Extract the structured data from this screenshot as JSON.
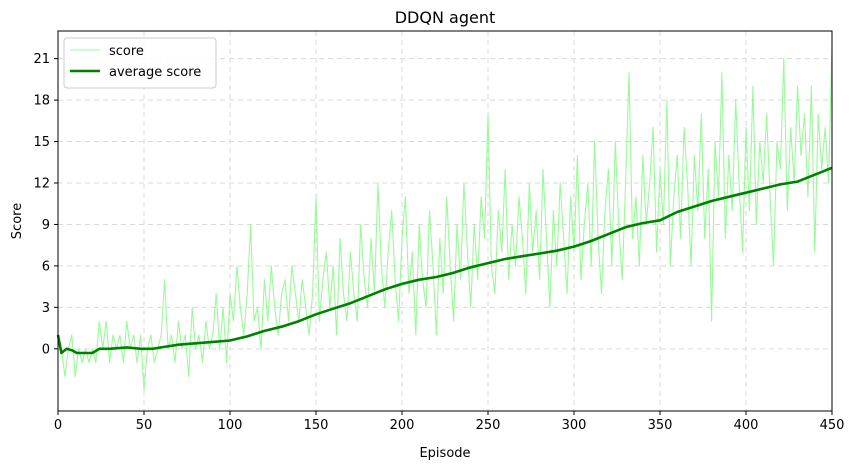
{
  "chart_data": {
    "type": "line",
    "title": "DDQN agent",
    "xlabel": "Episode",
    "ylabel": "Score",
    "xlim": [
      0,
      450
    ],
    "ylim": [
      -4.5,
      23
    ],
    "xticks": [
      0,
      50,
      100,
      150,
      200,
      250,
      300,
      350,
      400,
      450
    ],
    "yticks": [
      0,
      3,
      6,
      9,
      12,
      15,
      18,
      21
    ],
    "grid": true,
    "legend": "top-left",
    "colors": {
      "score": "#98fb98",
      "average": "#008000"
    },
    "series": [
      {
        "name": "score",
        "style": "thin",
        "points": [
          [
            0,
            1
          ],
          [
            2,
            0
          ],
          [
            4,
            -2
          ],
          [
            6,
            0
          ],
          [
            8,
            1
          ],
          [
            10,
            -2
          ],
          [
            12,
            0
          ],
          [
            14,
            -1
          ],
          [
            16,
            0
          ],
          [
            18,
            -1
          ],
          [
            20,
            0
          ],
          [
            22,
            -1
          ],
          [
            24,
            2
          ],
          [
            26,
            0
          ],
          [
            28,
            2
          ],
          [
            30,
            -1
          ],
          [
            32,
            1
          ],
          [
            34,
            0
          ],
          [
            36,
            1
          ],
          [
            38,
            -1
          ],
          [
            40,
            2
          ],
          [
            42,
            0
          ],
          [
            44,
            1
          ],
          [
            46,
            -1
          ],
          [
            48,
            1
          ],
          [
            50,
            -3
          ],
          [
            52,
            0
          ],
          [
            54,
            1
          ],
          [
            56,
            -1
          ],
          [
            58,
            0
          ],
          [
            60,
            1
          ],
          [
            62,
            5
          ],
          [
            64,
            0
          ],
          [
            66,
            1
          ],
          [
            68,
            -1
          ],
          [
            70,
            2
          ],
          [
            72,
            0
          ],
          [
            74,
            1
          ],
          [
            76,
            -2
          ],
          [
            78,
            3
          ],
          [
            80,
            0
          ],
          [
            82,
            1
          ],
          [
            84,
            -1
          ],
          [
            86,
            2
          ],
          [
            88,
            0
          ],
          [
            90,
            1
          ],
          [
            92,
            4
          ],
          [
            94,
            0
          ],
          [
            96,
            3
          ],
          [
            98,
            -1
          ],
          [
            100,
            4
          ],
          [
            102,
            2
          ],
          [
            104,
            6
          ],
          [
            106,
            3
          ],
          [
            108,
            1
          ],
          [
            110,
            4
          ],
          [
            112,
            9
          ],
          [
            114,
            2
          ],
          [
            116,
            3
          ],
          [
            118,
            0
          ],
          [
            120,
            5
          ],
          [
            122,
            2
          ],
          [
            124,
            6
          ],
          [
            126,
            3
          ],
          [
            128,
            1
          ],
          [
            130,
            4
          ],
          [
            132,
            5
          ],
          [
            134,
            2
          ],
          [
            136,
            6
          ],
          [
            138,
            4
          ],
          [
            140,
            2
          ],
          [
            142,
            5
          ],
          [
            144,
            3
          ],
          [
            146,
            1
          ],
          [
            148,
            4
          ],
          [
            150,
            11
          ],
          [
            152,
            2
          ],
          [
            154,
            5
          ],
          [
            156,
            7
          ],
          [
            158,
            3
          ],
          [
            160,
            6
          ],
          [
            162,
            1
          ],
          [
            164,
            8
          ],
          [
            166,
            4
          ],
          [
            168,
            2
          ],
          [
            170,
            7
          ],
          [
            172,
            4
          ],
          [
            174,
            2
          ],
          [
            176,
            9
          ],
          [
            178,
            5
          ],
          [
            180,
            3
          ],
          [
            182,
            8
          ],
          [
            184,
            4
          ],
          [
            186,
            12
          ],
          [
            188,
            6
          ],
          [
            190,
            3
          ],
          [
            192,
            7
          ],
          [
            194,
            10
          ],
          [
            196,
            5
          ],
          [
            198,
            2
          ],
          [
            200,
            8
          ],
          [
            202,
            11
          ],
          [
            204,
            4
          ],
          [
            206,
            7
          ],
          [
            208,
            1
          ],
          [
            210,
            9
          ],
          [
            212,
            5
          ],
          [
            214,
            3
          ],
          [
            216,
            10
          ],
          [
            218,
            6
          ],
          [
            220,
            1
          ],
          [
            222,
            8
          ],
          [
            224,
            4
          ],
          [
            226,
            11
          ],
          [
            228,
            6
          ],
          [
            230,
            2
          ],
          [
            232,
            9
          ],
          [
            234,
            5
          ],
          [
            236,
            12
          ],
          [
            238,
            7
          ],
          [
            240,
            3
          ],
          [
            242,
            9
          ],
          [
            244,
            5
          ],
          [
            246,
            11
          ],
          [
            248,
            8
          ],
          [
            250,
            17
          ],
          [
            252,
            6
          ],
          [
            254,
            4
          ],
          [
            256,
            10
          ],
          [
            258,
            7
          ],
          [
            260,
            13
          ],
          [
            262,
            5
          ],
          [
            264,
            9
          ],
          [
            266,
            6
          ],
          [
            268,
            11
          ],
          [
            270,
            8
          ],
          [
            272,
            4
          ],
          [
            274,
            12
          ],
          [
            276,
            7
          ],
          [
            278,
            10
          ],
          [
            280,
            5
          ],
          [
            282,
            13
          ],
          [
            284,
            8
          ],
          [
            286,
            3
          ],
          [
            288,
            10
          ],
          [
            290,
            6
          ],
          [
            292,
            12
          ],
          [
            294,
            8
          ],
          [
            296,
            4
          ],
          [
            298,
            11
          ],
          [
            300,
            7
          ],
          [
            302,
            14
          ],
          [
            304,
            5
          ],
          [
            306,
            9
          ],
          [
            308,
            12
          ],
          [
            310,
            6
          ],
          [
            312,
            15
          ],
          [
            314,
            8
          ],
          [
            316,
            4
          ],
          [
            318,
            10
          ],
          [
            320,
            13
          ],
          [
            322,
            6
          ],
          [
            324,
            15
          ],
          [
            326,
            9
          ],
          [
            328,
            5
          ],
          [
            330,
            12
          ],
          [
            332,
            20
          ],
          [
            334,
            8
          ],
          [
            336,
            11
          ],
          [
            338,
            6
          ],
          [
            340,
            14
          ],
          [
            342,
            9
          ],
          [
            344,
            12
          ],
          [
            346,
            16
          ],
          [
            348,
            7
          ],
          [
            350,
            13
          ],
          [
            352,
            9
          ],
          [
            354,
            18
          ],
          [
            356,
            6
          ],
          [
            358,
            11
          ],
          [
            360,
            14
          ],
          [
            362,
            8
          ],
          [
            364,
            16
          ],
          [
            366,
            12
          ],
          [
            368,
            6
          ],
          [
            370,
            14
          ],
          [
            372,
            10
          ],
          [
            374,
            17
          ],
          [
            376,
            8
          ],
          [
            378,
            13
          ],
          [
            380,
            2
          ],
          [
            382,
            15
          ],
          [
            384,
            11
          ],
          [
            386,
            20
          ],
          [
            388,
            8
          ],
          [
            390,
            14
          ],
          [
            392,
            10
          ],
          [
            394,
            18
          ],
          [
            396,
            12
          ],
          [
            398,
            7
          ],
          [
            400,
            16
          ],
          [
            402,
            10
          ],
          [
            404,
            19
          ],
          [
            406,
            9
          ],
          [
            408,
            15
          ],
          [
            410,
            12
          ],
          [
            412,
            17
          ],
          [
            414,
            11
          ],
          [
            416,
            6
          ],
          [
            418,
            15
          ],
          [
            420,
            13
          ],
          [
            422,
            21
          ],
          [
            424,
            10
          ],
          [
            426,
            16
          ],
          [
            428,
            12
          ],
          [
            430,
            19
          ],
          [
            432,
            14
          ],
          [
            434,
            17
          ],
          [
            436,
            11
          ],
          [
            438,
            19
          ],
          [
            440,
            7
          ],
          [
            442,
            17
          ],
          [
            444,
            13
          ],
          [
            446,
            16
          ],
          [
            448,
            12
          ],
          [
            450,
            22
          ]
        ]
      },
      {
        "name": "average score",
        "style": "thick",
        "points": [
          [
            0,
            1
          ],
          [
            2,
            -0.3
          ],
          [
            5,
            0
          ],
          [
            8,
            -0.1
          ],
          [
            11,
            -0.3
          ],
          [
            15,
            -0.3
          ],
          [
            20,
            -0.3
          ],
          [
            24,
            0
          ],
          [
            30,
            0
          ],
          [
            40,
            0.1
          ],
          [
            48,
            0
          ],
          [
            55,
            0
          ],
          [
            60,
            0.1
          ],
          [
            70,
            0.3
          ],
          [
            80,
            0.4
          ],
          [
            90,
            0.5
          ],
          [
            100,
            0.6
          ],
          [
            110,
            0.9
          ],
          [
            120,
            1.3
          ],
          [
            130,
            1.6
          ],
          [
            140,
            2.0
          ],
          [
            150,
            2.5
          ],
          [
            160,
            2.9
          ],
          [
            170,
            3.3
          ],
          [
            180,
            3.8
          ],
          [
            190,
            4.3
          ],
          [
            200,
            4.7
          ],
          [
            210,
            5.0
          ],
          [
            220,
            5.2
          ],
          [
            230,
            5.5
          ],
          [
            240,
            5.9
          ],
          [
            250,
            6.2
          ],
          [
            260,
            6.5
          ],
          [
            270,
            6.7
          ],
          [
            280,
            6.9
          ],
          [
            290,
            7.1
          ],
          [
            300,
            7.4
          ],
          [
            310,
            7.8
          ],
          [
            320,
            8.3
          ],
          [
            330,
            8.8
          ],
          [
            340,
            9.1
          ],
          [
            350,
            9.3
          ],
          [
            360,
            9.9
          ],
          [
            370,
            10.3
          ],
          [
            380,
            10.7
          ],
          [
            390,
            11.0
          ],
          [
            400,
            11.3
          ],
          [
            410,
            11.6
          ],
          [
            420,
            11.9
          ],
          [
            430,
            12.1
          ],
          [
            440,
            12.6
          ],
          [
            450,
            13.1
          ]
        ]
      }
    ]
  }
}
